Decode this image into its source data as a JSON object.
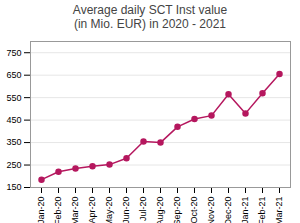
{
  "chart_data": {
    "type": "line",
    "title": "Average daily SCT Inst value\n(in Mio. EUR) in 2020 - 2021",
    "categories": [
      "Jan-20",
      "Feb-20",
      "Mar-20",
      "Apr-20",
      "May-20",
      "Jun-20",
      "Jul-20",
      "Aug-20",
      "Sep-20",
      "Oct-20",
      "Nov-20",
      "Dec-20",
      "Jan-21",
      "Feb-21",
      "Mar-21"
    ],
    "values": [
      185,
      220,
      235,
      245,
      252,
      280,
      355,
      350,
      420,
      455,
      470,
      565,
      480,
      570,
      655
    ],
    "color": "#b5175e",
    "marker": "circle",
    "ylim": [
      150,
      800
    ],
    "yticks": [
      150,
      250,
      350,
      450,
      550,
      650,
      750
    ],
    "grid": true
  }
}
